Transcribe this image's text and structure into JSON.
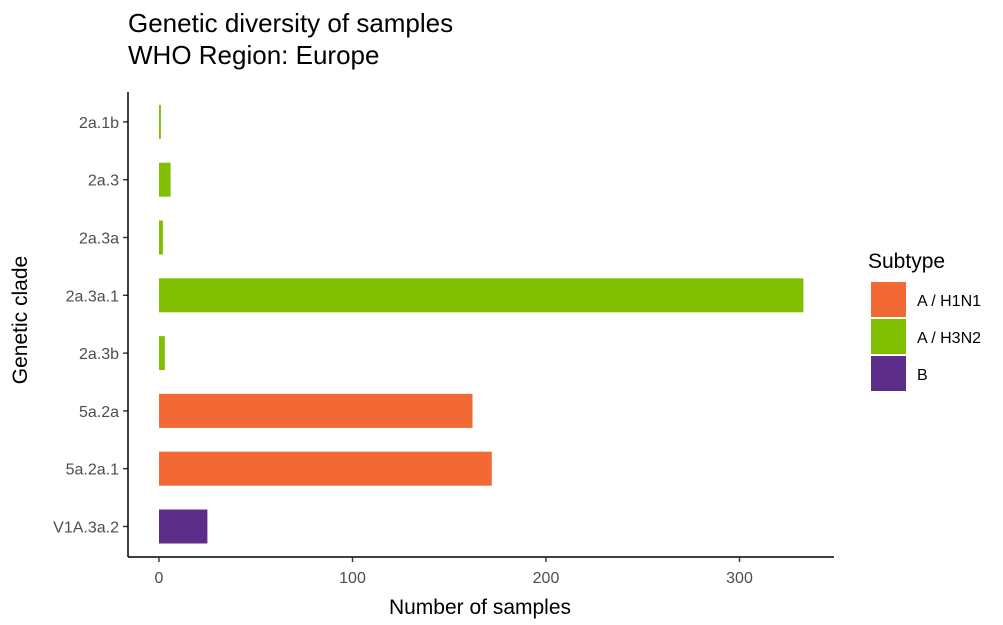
{
  "chart_data": {
    "type": "bar",
    "orientation": "horizontal",
    "title": "Genetic diversity of samples",
    "subtitle": "WHO Region: Europe",
    "xlabel": "Number of samples",
    "ylabel": "Genetic clade",
    "xlim": [
      -15,
      350
    ],
    "xticks": [
      0,
      100,
      200,
      300
    ],
    "grid": false,
    "legend_position": "right",
    "legend_title": "Subtype",
    "subtypes": [
      {
        "name": "A / H1N1",
        "color": "#F26935"
      },
      {
        "name": "A / H3N2",
        "color": "#7FBF00"
      },
      {
        "name": "B",
        "color": "#5C2D89"
      }
    ],
    "categories": [
      "2a.1b",
      "2a.3",
      "2a.3a",
      "2a.3a.1",
      "2a.3b",
      "5a.2a",
      "5a.2a.1",
      "V1A.3a.2"
    ],
    "values": [
      1,
      6,
      2,
      333,
      3,
      162,
      172,
      25
    ],
    "subtype_of_category": [
      "A / H3N2",
      "A / H3N2",
      "A / H3N2",
      "A / H3N2",
      "A / H3N2",
      "A / H1N1",
      "A / H1N1",
      "B"
    ]
  }
}
